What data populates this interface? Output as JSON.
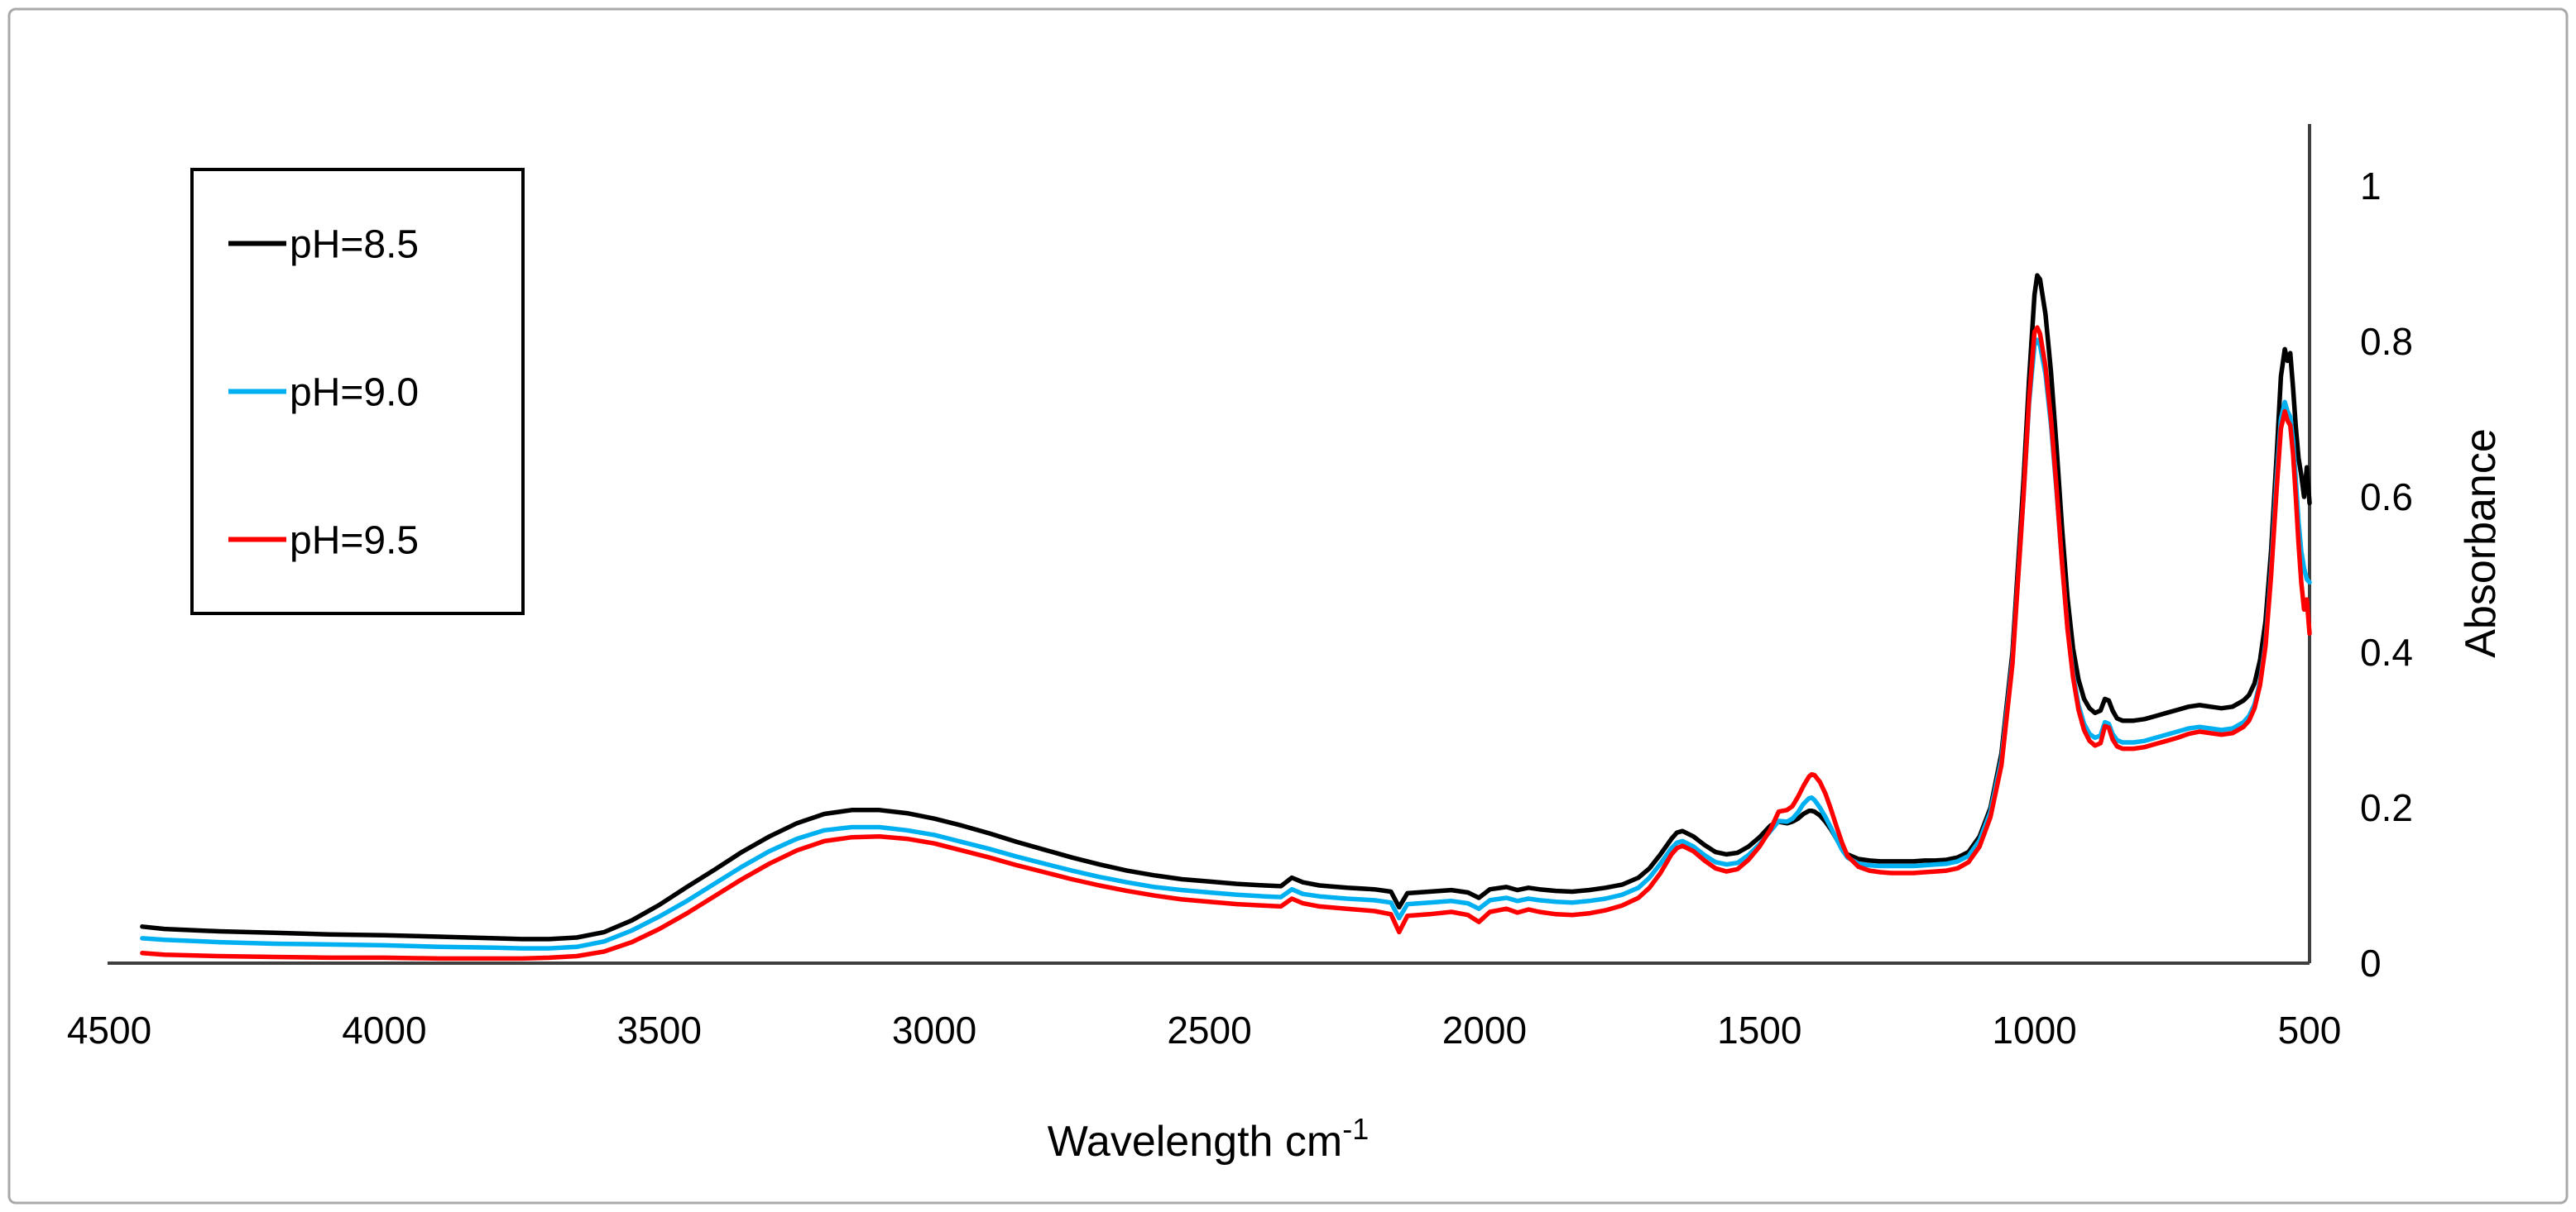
{
  "figure": {
    "border_color": "#a9a9a9",
    "background": "#ffffff"
  },
  "chart_data": {
    "type": "line",
    "title": "",
    "xlabel": "Wavelength cm",
    "xlabel_sup": "-1",
    "ylabel": "Absorbance",
    "grid": false,
    "x_axis": {
      "min": 500,
      "max": 4500,
      "reversed": true,
      "tick_values": [
        4500,
        4000,
        3500,
        3000,
        2500,
        2000,
        1500,
        1000,
        500
      ]
    },
    "y_axis": {
      "side": "right",
      "min": 0,
      "max": 1,
      "tick_values": [
        1,
        0.8,
        0.6,
        0.4,
        0.2,
        0
      ],
      "tick_labels": [
        "1",
        "0.8",
        "0.6",
        "0.4",
        "0.2",
        "0"
      ]
    },
    "legend": {
      "position": "upper-left",
      "border": true,
      "entries": [
        {
          "label": "pH=8.5",
          "color": "#000000"
        },
        {
          "label": "pH=9.0",
          "color": "#00b0f0"
        },
        {
          "label": "pH=9.5",
          "color": "#ff0000"
        }
      ]
    },
    "x": [
      4440,
      4400,
      4300,
      4200,
      4100,
      4000,
      3900,
      3800,
      3750,
      3700,
      3650,
      3600,
      3550,
      3500,
      3450,
      3400,
      3350,
      3300,
      3250,
      3200,
      3150,
      3100,
      3050,
      3000,
      2950,
      2900,
      2850,
      2800,
      2750,
      2700,
      2650,
      2600,
      2550,
      2500,
      2450,
      2400,
      2370,
      2350,
      2330,
      2300,
      2250,
      2200,
      2170,
      2155,
      2140,
      2100,
      2060,
      2030,
      2010,
      1990,
      1960,
      1940,
      1920,
      1900,
      1870,
      1840,
      1810,
      1780,
      1750,
      1720,
      1700,
      1680,
      1660,
      1650,
      1640,
      1620,
      1600,
      1580,
      1560,
      1540,
      1520,
      1500,
      1480,
      1465,
      1450,
      1440,
      1430,
      1420,
      1410,
      1405,
      1400,
      1390,
      1380,
      1370,
      1360,
      1350,
      1340,
      1320,
      1300,
      1280,
      1260,
      1240,
      1220,
      1200,
      1180,
      1160,
      1140,
      1120,
      1100,
      1080,
      1060,
      1040,
      1020,
      1010,
      1000,
      995,
      990,
      980,
      970,
      960,
      950,
      940,
      930,
      920,
      910,
      900,
      890,
      880,
      872,
      865,
      858,
      850,
      840,
      820,
      800,
      780,
      760,
      740,
      720,
      700,
      680,
      660,
      640,
      620,
      610,
      600,
      590,
      580,
      570,
      560,
      552,
      545,
      540,
      535,
      530,
      525,
      520,
      515,
      510,
      505,
      500
    ],
    "series": [
      {
        "name": "pH=8.5",
        "color": "#000000",
        "y": [
          0.047,
          0.044,
          0.041,
          0.039,
          0.037,
          0.036,
          0.034,
          0.032,
          0.031,
          0.031,
          0.033,
          0.04,
          0.055,
          0.075,
          0.098,
          0.12,
          0.143,
          0.163,
          0.18,
          0.192,
          0.197,
          0.197,
          0.193,
          0.186,
          0.177,
          0.167,
          0.156,
          0.146,
          0.136,
          0.127,
          0.119,
          0.113,
          0.108,
          0.105,
          0.102,
          0.1,
          0.099,
          0.11,
          0.104,
          0.1,
          0.097,
          0.095,
          0.092,
          0.072,
          0.09,
          0.092,
          0.094,
          0.091,
          0.084,
          0.095,
          0.098,
          0.094,
          0.097,
          0.095,
          0.093,
          0.092,
          0.094,
          0.097,
          0.101,
          0.11,
          0.122,
          0.14,
          0.16,
          0.168,
          0.17,
          0.163,
          0.152,
          0.143,
          0.14,
          0.142,
          0.15,
          0.162,
          0.177,
          0.182,
          0.18,
          0.182,
          0.186,
          0.192,
          0.196,
          0.196,
          0.195,
          0.19,
          0.182,
          0.172,
          0.16,
          0.148,
          0.14,
          0.134,
          0.132,
          0.131,
          0.131,
          0.131,
          0.131,
          0.132,
          0.132,
          0.133,
          0.136,
          0.143,
          0.163,
          0.2,
          0.27,
          0.4,
          0.62,
          0.75,
          0.86,
          0.885,
          0.88,
          0.835,
          0.76,
          0.665,
          0.56,
          0.47,
          0.405,
          0.365,
          0.34,
          0.328,
          0.322,
          0.325,
          0.34,
          0.338,
          0.325,
          0.315,
          0.312,
          0.312,
          0.314,
          0.318,
          0.322,
          0.326,
          0.33,
          0.332,
          0.33,
          0.328,
          0.33,
          0.338,
          0.345,
          0.36,
          0.39,
          0.44,
          0.53,
          0.65,
          0.755,
          0.79,
          0.775,
          0.785,
          0.74,
          0.69,
          0.65,
          0.628,
          0.6,
          0.638,
          0.592
        ]
      },
      {
        "name": "pH=9.0",
        "color": "#00b0f0",
        "y": [
          0.032,
          0.03,
          0.027,
          0.025,
          0.024,
          0.023,
          0.021,
          0.02,
          0.019,
          0.019,
          0.021,
          0.028,
          0.042,
          0.06,
          0.08,
          0.102,
          0.124,
          0.144,
          0.16,
          0.171,
          0.175,
          0.175,
          0.171,
          0.165,
          0.156,
          0.147,
          0.137,
          0.128,
          0.119,
          0.111,
          0.104,
          0.098,
          0.094,
          0.091,
          0.088,
          0.086,
          0.085,
          0.095,
          0.089,
          0.086,
          0.083,
          0.081,
          0.078,
          0.058,
          0.076,
          0.078,
          0.08,
          0.077,
          0.07,
          0.081,
          0.084,
          0.08,
          0.083,
          0.081,
          0.079,
          0.078,
          0.08,
          0.083,
          0.088,
          0.097,
          0.11,
          0.128,
          0.148,
          0.155,
          0.157,
          0.15,
          0.139,
          0.13,
          0.127,
          0.129,
          0.139,
          0.153,
          0.17,
          0.183,
          0.182,
          0.186,
          0.194,
          0.205,
          0.212,
          0.213,
          0.21,
          0.2,
          0.188,
          0.174,
          0.16,
          0.146,
          0.136,
          0.128,
          0.126,
          0.125,
          0.125,
          0.125,
          0.125,
          0.126,
          0.127,
          0.128,
          0.131,
          0.138,
          0.158,
          0.195,
          0.262,
          0.39,
          0.6,
          0.72,
          0.795,
          0.802,
          0.795,
          0.758,
          0.692,
          0.608,
          0.515,
          0.432,
          0.372,
          0.332,
          0.308,
          0.295,
          0.29,
          0.293,
          0.31,
          0.308,
          0.295,
          0.287,
          0.284,
          0.284,
          0.286,
          0.29,
          0.294,
          0.298,
          0.302,
          0.304,
          0.302,
          0.3,
          0.302,
          0.31,
          0.318,
          0.333,
          0.362,
          0.412,
          0.505,
          0.622,
          0.7,
          0.722,
          0.71,
          0.703,
          0.672,
          0.622,
          0.568,
          0.53,
          0.508,
          0.494,
          0.49
        ]
      },
      {
        "name": "pH=9.5",
        "color": "#ff0000",
        "y": [
          0.013,
          0.011,
          0.009,
          0.008,
          0.007,
          0.007,
          0.006,
          0.006,
          0.006,
          0.007,
          0.009,
          0.015,
          0.027,
          0.044,
          0.064,
          0.086,
          0.108,
          0.128,
          0.145,
          0.157,
          0.162,
          0.163,
          0.16,
          0.154,
          0.145,
          0.136,
          0.126,
          0.117,
          0.108,
          0.1,
          0.093,
          0.087,
          0.082,
          0.079,
          0.076,
          0.074,
          0.073,
          0.083,
          0.077,
          0.073,
          0.07,
          0.067,
          0.063,
          0.04,
          0.061,
          0.063,
          0.066,
          0.062,
          0.053,
          0.066,
          0.07,
          0.065,
          0.069,
          0.066,
          0.063,
          0.062,
          0.064,
          0.068,
          0.074,
          0.084,
          0.097,
          0.116,
          0.14,
          0.148,
          0.151,
          0.144,
          0.132,
          0.122,
          0.118,
          0.121,
          0.133,
          0.15,
          0.172,
          0.195,
          0.197,
          0.202,
          0.214,
          0.228,
          0.24,
          0.243,
          0.242,
          0.233,
          0.218,
          0.198,
          0.176,
          0.155,
          0.138,
          0.124,
          0.119,
          0.117,
          0.116,
          0.116,
          0.116,
          0.117,
          0.118,
          0.119,
          0.122,
          0.13,
          0.15,
          0.188,
          0.255,
          0.385,
          0.6,
          0.725,
          0.812,
          0.818,
          0.81,
          0.768,
          0.7,
          0.612,
          0.515,
          0.43,
          0.368,
          0.326,
          0.3,
          0.286,
          0.28,
          0.283,
          0.305,
          0.303,
          0.288,
          0.279,
          0.276,
          0.276,
          0.278,
          0.282,
          0.286,
          0.29,
          0.295,
          0.298,
          0.296,
          0.294,
          0.296,
          0.304,
          0.312,
          0.328,
          0.358,
          0.408,
          0.498,
          0.608,
          0.688,
          0.71,
          0.698,
          0.692,
          0.655,
          0.6,
          0.54,
          0.49,
          0.455,
          0.468,
          0.424
        ]
      }
    ]
  }
}
